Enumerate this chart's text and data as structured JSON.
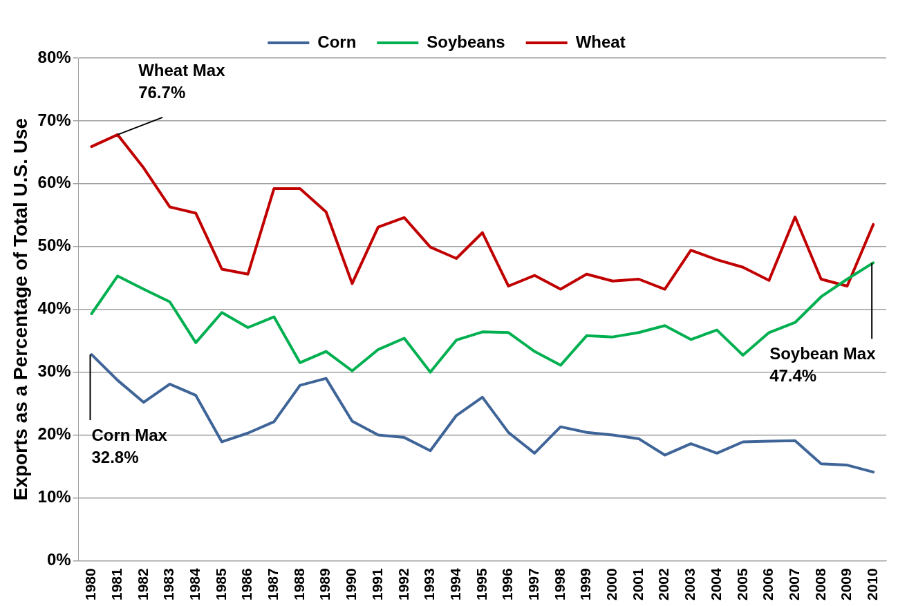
{
  "chart_data": {
    "type": "line",
    "ylabel": "Exports as a Percentage of Total U.S. Use",
    "categories": [
      "1980",
      "1981",
      "1982",
      "1983",
      "1984",
      "1985",
      "1986",
      "1987",
      "1988",
      "1989",
      "1990",
      "1991",
      "1992",
      "1993",
      "1994",
      "1995",
      "1996",
      "1997",
      "1998",
      "1999",
      "2000",
      "2001",
      "2002",
      "2003",
      "2004",
      "2005",
      "2006",
      "2007",
      "2008",
      "2009",
      "2010"
    ],
    "series": [
      {
        "name": "Corn",
        "color": "#3f6598",
        "values": [
          32.8,
          28.7,
          25.2,
          28.1,
          26.3,
          18.9,
          20.3,
          22.1,
          27.9,
          29.0,
          22.2,
          20.0,
          19.6,
          17.5,
          23.1,
          26.0,
          20.4,
          17.1,
          21.3,
          20.4,
          20.0,
          19.4,
          16.8,
          18.6,
          17.1,
          18.9,
          19.0,
          19.1,
          15.4,
          15.2,
          14.1
        ]
      },
      {
        "name": "Soybeans",
        "color": "#00b050",
        "values": [
          39.3,
          45.3,
          43.2,
          41.2,
          34.7,
          39.5,
          37.1,
          38.8,
          31.5,
          33.3,
          30.2,
          33.6,
          35.4,
          30.0,
          35.1,
          36.4,
          36.3,
          33.3,
          31.1,
          35.8,
          35.6,
          36.3,
          37.4,
          35.2,
          36.7,
          32.7,
          36.3,
          37.9,
          42.0,
          44.8,
          47.4
        ]
      },
      {
        "name": "Wheat",
        "color": "#c00000",
        "values": [
          65.9,
          67.8,
          62.5,
          56.3,
          55.3,
          46.4,
          45.6,
          59.2,
          59.2,
          55.5,
          44.1,
          53.1,
          54.6,
          49.9,
          48.1,
          52.2,
          43.7,
          45.4,
          43.2,
          45.6,
          44.5,
          44.8,
          43.2,
          49.4,
          47.9,
          46.7,
          44.6,
          54.7,
          44.8,
          43.7,
          53.5
        ]
      }
    ],
    "ylim": [
      0,
      80
    ],
    "yticks": [
      {
        "value": 0,
        "label": "0%"
      },
      {
        "value": 10,
        "label": "10%"
      },
      {
        "value": 20,
        "label": "20%"
      },
      {
        "value": 30,
        "label": "30%"
      },
      {
        "value": 40,
        "label": "40%"
      },
      {
        "value": 50,
        "label": "50%"
      },
      {
        "value": 60,
        "label": "60%"
      },
      {
        "value": 70,
        "label": "70%"
      },
      {
        "value": 80,
        "label": "80%"
      }
    ],
    "grid": "y",
    "legend": "top",
    "marker": "none",
    "line_style": "solid",
    "annotations": [
      {
        "text": "Wheat Max\n76.7%",
        "x": "1981",
        "y": 67.8
      },
      {
        "text": "Corn Max\n32.8%",
        "x": "1980",
        "y": 32.8
      },
      {
        "text": "Soybean Max\n47.4%",
        "x": "2010",
        "y": 47.4
      }
    ]
  }
}
